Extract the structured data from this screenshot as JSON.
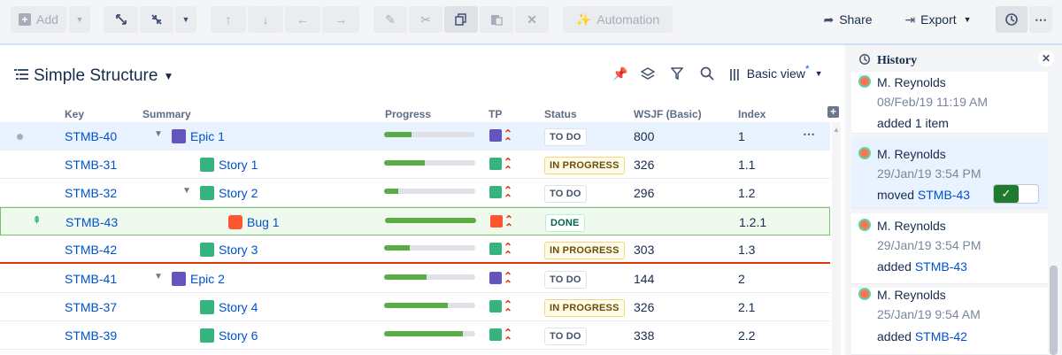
{
  "toolbar": {
    "add_label": "Add",
    "automation_label": "Automation",
    "share_label": "Share",
    "export_label": "Export"
  },
  "structure": {
    "title": "Simple Structure",
    "view_label": "Basic view",
    "view_modified_mark": "*"
  },
  "columns": [
    "Key",
    "Summary",
    "Progress",
    "TP",
    "Status",
    "WSJF (Basic)",
    "Index"
  ],
  "rows": [
    {
      "key": "STMB-40",
      "summary": "Epic 1",
      "type": "epic",
      "progress": 0.3,
      "status": "TO DO",
      "status_kind": "todo",
      "wsjf": "800",
      "index": "1"
    },
    {
      "key": "STMB-31",
      "summary": "Story 1",
      "type": "story",
      "progress": 0.45,
      "status": "IN PROGRESS",
      "status_kind": "progress",
      "wsjf": "326",
      "index": "1.1"
    },
    {
      "key": "STMB-32",
      "summary": "Story 2",
      "type": "story",
      "progress": 0.16,
      "status": "TO DO",
      "status_kind": "todo",
      "wsjf": "296",
      "index": "1.2"
    },
    {
      "key": "STMB-43",
      "summary": "Bug 1",
      "type": "bug",
      "progress": 1.0,
      "status": "DONE",
      "status_kind": "done",
      "wsjf": "",
      "index": "1.2.1"
    },
    {
      "key": "STMB-42",
      "summary": "Story 3",
      "type": "story",
      "progress": 0.28,
      "status": "IN PROGRESS",
      "status_kind": "progress",
      "wsjf": "303",
      "index": "1.3"
    },
    {
      "key": "STMB-41",
      "summary": "Epic 2",
      "type": "epic",
      "progress": 0.47,
      "status": "TO DO",
      "status_kind": "todo",
      "wsjf": "144",
      "index": "2"
    },
    {
      "key": "STMB-37",
      "summary": "Story 4",
      "type": "story",
      "progress": 0.7,
      "status": "IN PROGRESS",
      "status_kind": "progress",
      "wsjf": "326",
      "index": "2.1"
    },
    {
      "key": "STMB-39",
      "summary": "Story 6",
      "type": "story",
      "progress": 0.86,
      "status": "TO DO",
      "status_kind": "todo",
      "wsjf": "338",
      "index": "2.2"
    }
  ],
  "history": {
    "title": "History",
    "entries": [
      {
        "user": "M. Reynolds",
        "time": "08/Feb/19 11:19 AM",
        "action": "added 1 item",
        "link": ""
      },
      {
        "user": "M. Reynolds",
        "time": "29/Jan/19 3:54 PM",
        "action": "moved ",
        "link": "STMB-43"
      },
      {
        "user": "M. Reynolds",
        "time": "29/Jan/19 3:54 PM",
        "action": "added ",
        "link": "STMB-43"
      },
      {
        "user": "M. Reynolds",
        "time": "25/Jan/19 9:54 AM",
        "action": "added ",
        "link": "STMB-42"
      }
    ]
  },
  "colors": {
    "accent": "#0052cc",
    "progress": "#5aac44",
    "epic": "#6554c0",
    "story": "#36b37e",
    "bug": "#ff5630"
  },
  "icons": [
    "plus-icon",
    "expand-icon",
    "collapse-icon",
    "arrow-up-icon",
    "arrow-down-icon",
    "arrow-left-icon",
    "arrow-right-icon",
    "pencil-icon",
    "scissors-icon",
    "copy-icon",
    "paste-icon",
    "delete-icon",
    "automation-wand-icon",
    "share-icon",
    "export-icon",
    "history-icon",
    "more-icon",
    "structure-icon",
    "pin-icon",
    "layers-icon",
    "filter-icon",
    "search-icon",
    "columns-icon",
    "close-icon",
    "check-icon"
  ]
}
